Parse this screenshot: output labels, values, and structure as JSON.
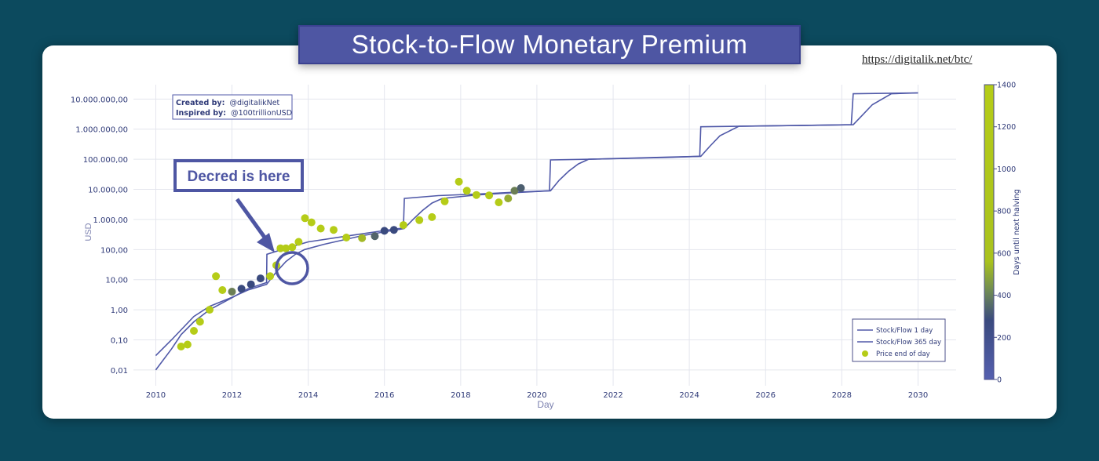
{
  "header": {
    "title": "Stock-to-Flow Monetary Premium",
    "source_url": "https://digitalik.net/btc/"
  },
  "credits": {
    "created_label": "Created by:",
    "created_value": "@digitalikNet",
    "inspired_label": "Inspired by:",
    "inspired_value": "@100trillionUSD"
  },
  "callout": {
    "text": "Decred is here"
  },
  "colors": {
    "line": "#5059a8",
    "price_high": "#b5cc18",
    "price_low": "#3a4a7e",
    "callout": "#4e56a3",
    "grid": "#e4e6ee"
  },
  "chart_data": {
    "type": "scatter",
    "xlabel": "Day",
    "ylabel": "USD",
    "y_scale": "log",
    "xlim": [
      "2009-06-01",
      "2031-01-01"
    ],
    "ylim": [
      0.003,
      30000000
    ],
    "x_ticks": [
      "2010",
      "2012",
      "2014",
      "2016",
      "2018",
      "2020",
      "2022",
      "2024",
      "2026",
      "2028",
      "2030"
    ],
    "y_ticks": [
      {
        "value": 0.01,
        "label": "0,01"
      },
      {
        "value": 0.1,
        "label": "0,10"
      },
      {
        "value": 1,
        "label": "1,00"
      },
      {
        "value": 10,
        "label": "10,00"
      },
      {
        "value": 100,
        "label": "100,00"
      },
      {
        "value": 1000,
        "label": "1.000,00"
      },
      {
        "value": 10000,
        "label": "10.000,00"
      },
      {
        "value": 100000,
        "label": "100.000,00"
      },
      {
        "value": 1000000,
        "label": "1.000.000,00"
      },
      {
        "value": 10000000,
        "label": "10.000.000,00"
      }
    ],
    "grid": true,
    "legend_position": "bottom-right",
    "legend": [
      {
        "label": "Stock/Flow 1 day",
        "kind": "line"
      },
      {
        "label": "Stock/Flow 365 day",
        "kind": "line"
      },
      {
        "label": "Price end of day",
        "kind": "dot"
      }
    ],
    "colorbar": {
      "label": "Days until next halving",
      "range": [
        0,
        1400
      ],
      "ticks": [
        0,
        200,
        400,
        600,
        800,
        1000,
        1200,
        1400
      ]
    },
    "series": [
      {
        "name": "Stock/Flow 1 day",
        "points": [
          [
            "2010-01-01",
            0.01
          ],
          [
            "2010-06-01",
            0.05
          ],
          [
            "2010-09-01",
            0.15
          ],
          [
            "2011-01-01",
            0.4
          ],
          [
            "2011-06-01",
            1
          ],
          [
            "2012-01-01",
            2.5
          ],
          [
            "2012-06-01",
            5
          ],
          [
            "2012-11-28",
            8
          ],
          [
            "2012-12-01",
            70
          ],
          [
            "2013-06-01",
            110
          ],
          [
            "2014-01-01",
            180
          ],
          [
            "2015-01-01",
            280
          ],
          [
            "2016-01-01",
            430
          ],
          [
            "2016-07-01",
            520
          ],
          [
            "2016-07-10",
            5000
          ],
          [
            "2017-06-01",
            6200
          ],
          [
            "2018-06-01",
            7000
          ],
          [
            "2019-06-01",
            8000
          ],
          [
            "2020-05-01",
            9000
          ],
          [
            "2020-05-11",
            95000
          ],
          [
            "2021-06-01",
            100000
          ],
          [
            "2023-06-01",
            115000
          ],
          [
            "2024-04-10",
            125000
          ],
          [
            "2024-04-20",
            1200000
          ],
          [
            "2026-06-01",
            1300000
          ],
          [
            "2028-04-01",
            1400000
          ],
          [
            "2028-04-20",
            15000000
          ],
          [
            "2030-01-01",
            16000000
          ]
        ]
      },
      {
        "name": "Stock/Flow 365 day",
        "points": [
          [
            "2010-01-01",
            0.03
          ],
          [
            "2010-06-01",
            0.1
          ],
          [
            "2011-01-01",
            0.6
          ],
          [
            "2011-06-01",
            1.3
          ],
          [
            "2012-01-01",
            2.6
          ],
          [
            "2012-06-01",
            4.5
          ],
          [
            "2012-11-28",
            7
          ],
          [
            "2013-03-01",
            18
          ],
          [
            "2013-06-01",
            40
          ],
          [
            "2013-09-01",
            70
          ],
          [
            "2013-11-28",
            100
          ],
          [
            "2014-06-01",
            150
          ],
          [
            "2015-06-01",
            290
          ],
          [
            "2016-07-09",
            500
          ],
          [
            "2016-10-01",
            1000
          ],
          [
            "2017-01-01",
            2000
          ],
          [
            "2017-04-01",
            3500
          ],
          [
            "2017-07-09",
            5000
          ],
          [
            "2018-06-01",
            6500
          ],
          [
            "2019-06-01",
            7800
          ],
          [
            "2020-05-11",
            9000
          ],
          [
            "2020-08-01",
            20000
          ],
          [
            "2020-11-01",
            40000
          ],
          [
            "2021-02-01",
            70000
          ],
          [
            "2021-05-11",
            100000
          ],
          [
            "2023-06-01",
            118000
          ],
          [
            "2024-04-20",
            125000
          ],
          [
            "2024-07-20",
            280000
          ],
          [
            "2024-10-20",
            600000
          ],
          [
            "2025-04-20",
            1250000
          ],
          [
            "2027-06-01",
            1350000
          ],
          [
            "2028-04-20",
            1400000
          ],
          [
            "2028-07-20",
            3000000
          ],
          [
            "2028-10-20",
            6500000
          ],
          [
            "2029-04-20",
            15000000
          ],
          [
            "2030-01-01",
            16000000
          ]
        ]
      },
      {
        "name": "Price end of day",
        "points": [
          [
            "2010-09-01",
            0.06,
            1250
          ],
          [
            "2010-11-01",
            0.07,
            1200
          ],
          [
            "2011-01-01",
            0.2,
            1130
          ],
          [
            "2011-03-01",
            0.4,
            1070
          ],
          [
            "2011-06-01",
            1.0,
            980
          ],
          [
            "2011-08-01",
            13,
            900
          ],
          [
            "2011-10-01",
            4.5,
            850
          ],
          [
            "2012-01-01",
            4,
            330
          ],
          [
            "2012-04-01",
            5,
            240
          ],
          [
            "2012-07-01",
            7,
            150
          ],
          [
            "2012-10-01",
            11,
            60
          ],
          [
            "2013-01-01",
            13,
            1300
          ],
          [
            "2013-03-01",
            30,
            1240
          ],
          [
            "2013-04-10",
            110,
            1200
          ],
          [
            "2013-06-01",
            110,
            1150
          ],
          [
            "2013-08-01",
            120,
            1090
          ],
          [
            "2013-10-01",
            180,
            1030
          ],
          [
            "2013-12-01",
            1100,
            970
          ],
          [
            "2014-02-01",
            800,
            910
          ],
          [
            "2014-05-01",
            500,
            820
          ],
          [
            "2014-09-01",
            450,
            700
          ],
          [
            "2015-01-01",
            250,
            580
          ],
          [
            "2015-06-01",
            240,
            420
          ],
          [
            "2015-10-01",
            280,
            290
          ],
          [
            "2016-01-01",
            420,
            190
          ],
          [
            "2016-04-01",
            450,
            100
          ],
          [
            "2016-07-01",
            650,
            1400
          ],
          [
            "2016-12-01",
            950,
            1240
          ],
          [
            "2017-04-01",
            1200,
            1120
          ],
          [
            "2017-08-01",
            4000,
            1000
          ],
          [
            "2017-12-15",
            18000,
            880
          ],
          [
            "2018-03-01",
            9000,
            800
          ],
          [
            "2018-06-01",
            6500,
            700
          ],
          [
            "2018-10-01",
            6300,
            580
          ],
          [
            "2019-01-01",
            3700,
            480
          ],
          [
            "2019-04-01",
            5000,
            400
          ],
          [
            "2019-06-01",
            9000,
            330
          ],
          [
            "2019-08-01",
            11000,
            280
          ]
        ]
      }
    ]
  }
}
